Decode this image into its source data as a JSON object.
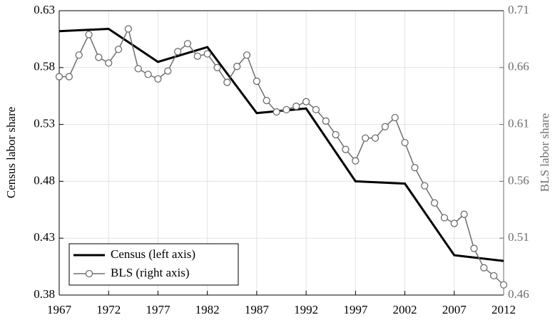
{
  "chart_data": {
    "type": "line",
    "xlim": [
      1967,
      2012
    ],
    "xticks": [
      1967,
      1972,
      1977,
      1982,
      1987,
      1992,
      1997,
      2002,
      2007,
      2012
    ],
    "ylim": [
      0.38,
      0.63
    ],
    "yticks": [
      0.38,
      0.43,
      0.48,
      0.53,
      0.58,
      0.63
    ],
    "y2lim": [
      0.46,
      0.71
    ],
    "y2ticks": [
      0.46,
      0.51,
      0.56,
      0.61,
      0.66,
      0.71
    ],
    "ylabel": "Census labor share",
    "y2label": "BLS labor share",
    "grid": true,
    "legend": "lower left",
    "series": [
      {
        "name": "Census (left axis)",
        "color": "#000000",
        "axis": "y",
        "x": [
          1967,
          1972,
          1977,
          1982,
          1987,
          1992,
          1997,
          2002,
          2007,
          2012
        ],
        "values": [
          0.612,
          0.614,
          0.585,
          0.598,
          0.54,
          0.544,
          0.48,
          0.478,
          0.415,
          0.41
        ]
      },
      {
        "name": "BLS (right axis)",
        "color": "#6e6e6e",
        "axis": "y2",
        "x": [
          1967,
          1968,
          1969,
          1970,
          1971,
          1972,
          1973,
          1974,
          1975,
          1976,
          1977,
          1978,
          1979,
          1980,
          1981,
          1982,
          1983,
          1984,
          1985,
          1986,
          1987,
          1988,
          1989,
          1990,
          1991,
          1992,
          1993,
          1994,
          1995,
          1996,
          1997,
          1998,
          1999,
          2000,
          2001,
          2002,
          2003,
          2004,
          2005,
          2006,
          2007,
          2008,
          2009,
          2010,
          2011,
          2012
        ],
        "values": [
          0.652,
          0.652,
          0.671,
          0.689,
          0.669,
          0.664,
          0.676,
          0.694,
          0.659,
          0.654,
          0.65,
          0.657,
          0.674,
          0.681,
          0.67,
          0.672,
          0.66,
          0.647,
          0.661,
          0.671,
          0.648,
          0.631,
          0.621,
          0.623,
          0.626,
          0.63,
          0.623,
          0.613,
          0.601,
          0.588,
          0.578,
          0.598,
          0.598,
          0.608,
          0.616,
          0.594,
          0.572,
          0.556,
          0.541,
          0.528,
          0.523,
          0.531,
          0.501,
          0.484,
          0.477,
          0.469
        ]
      }
    ]
  }
}
